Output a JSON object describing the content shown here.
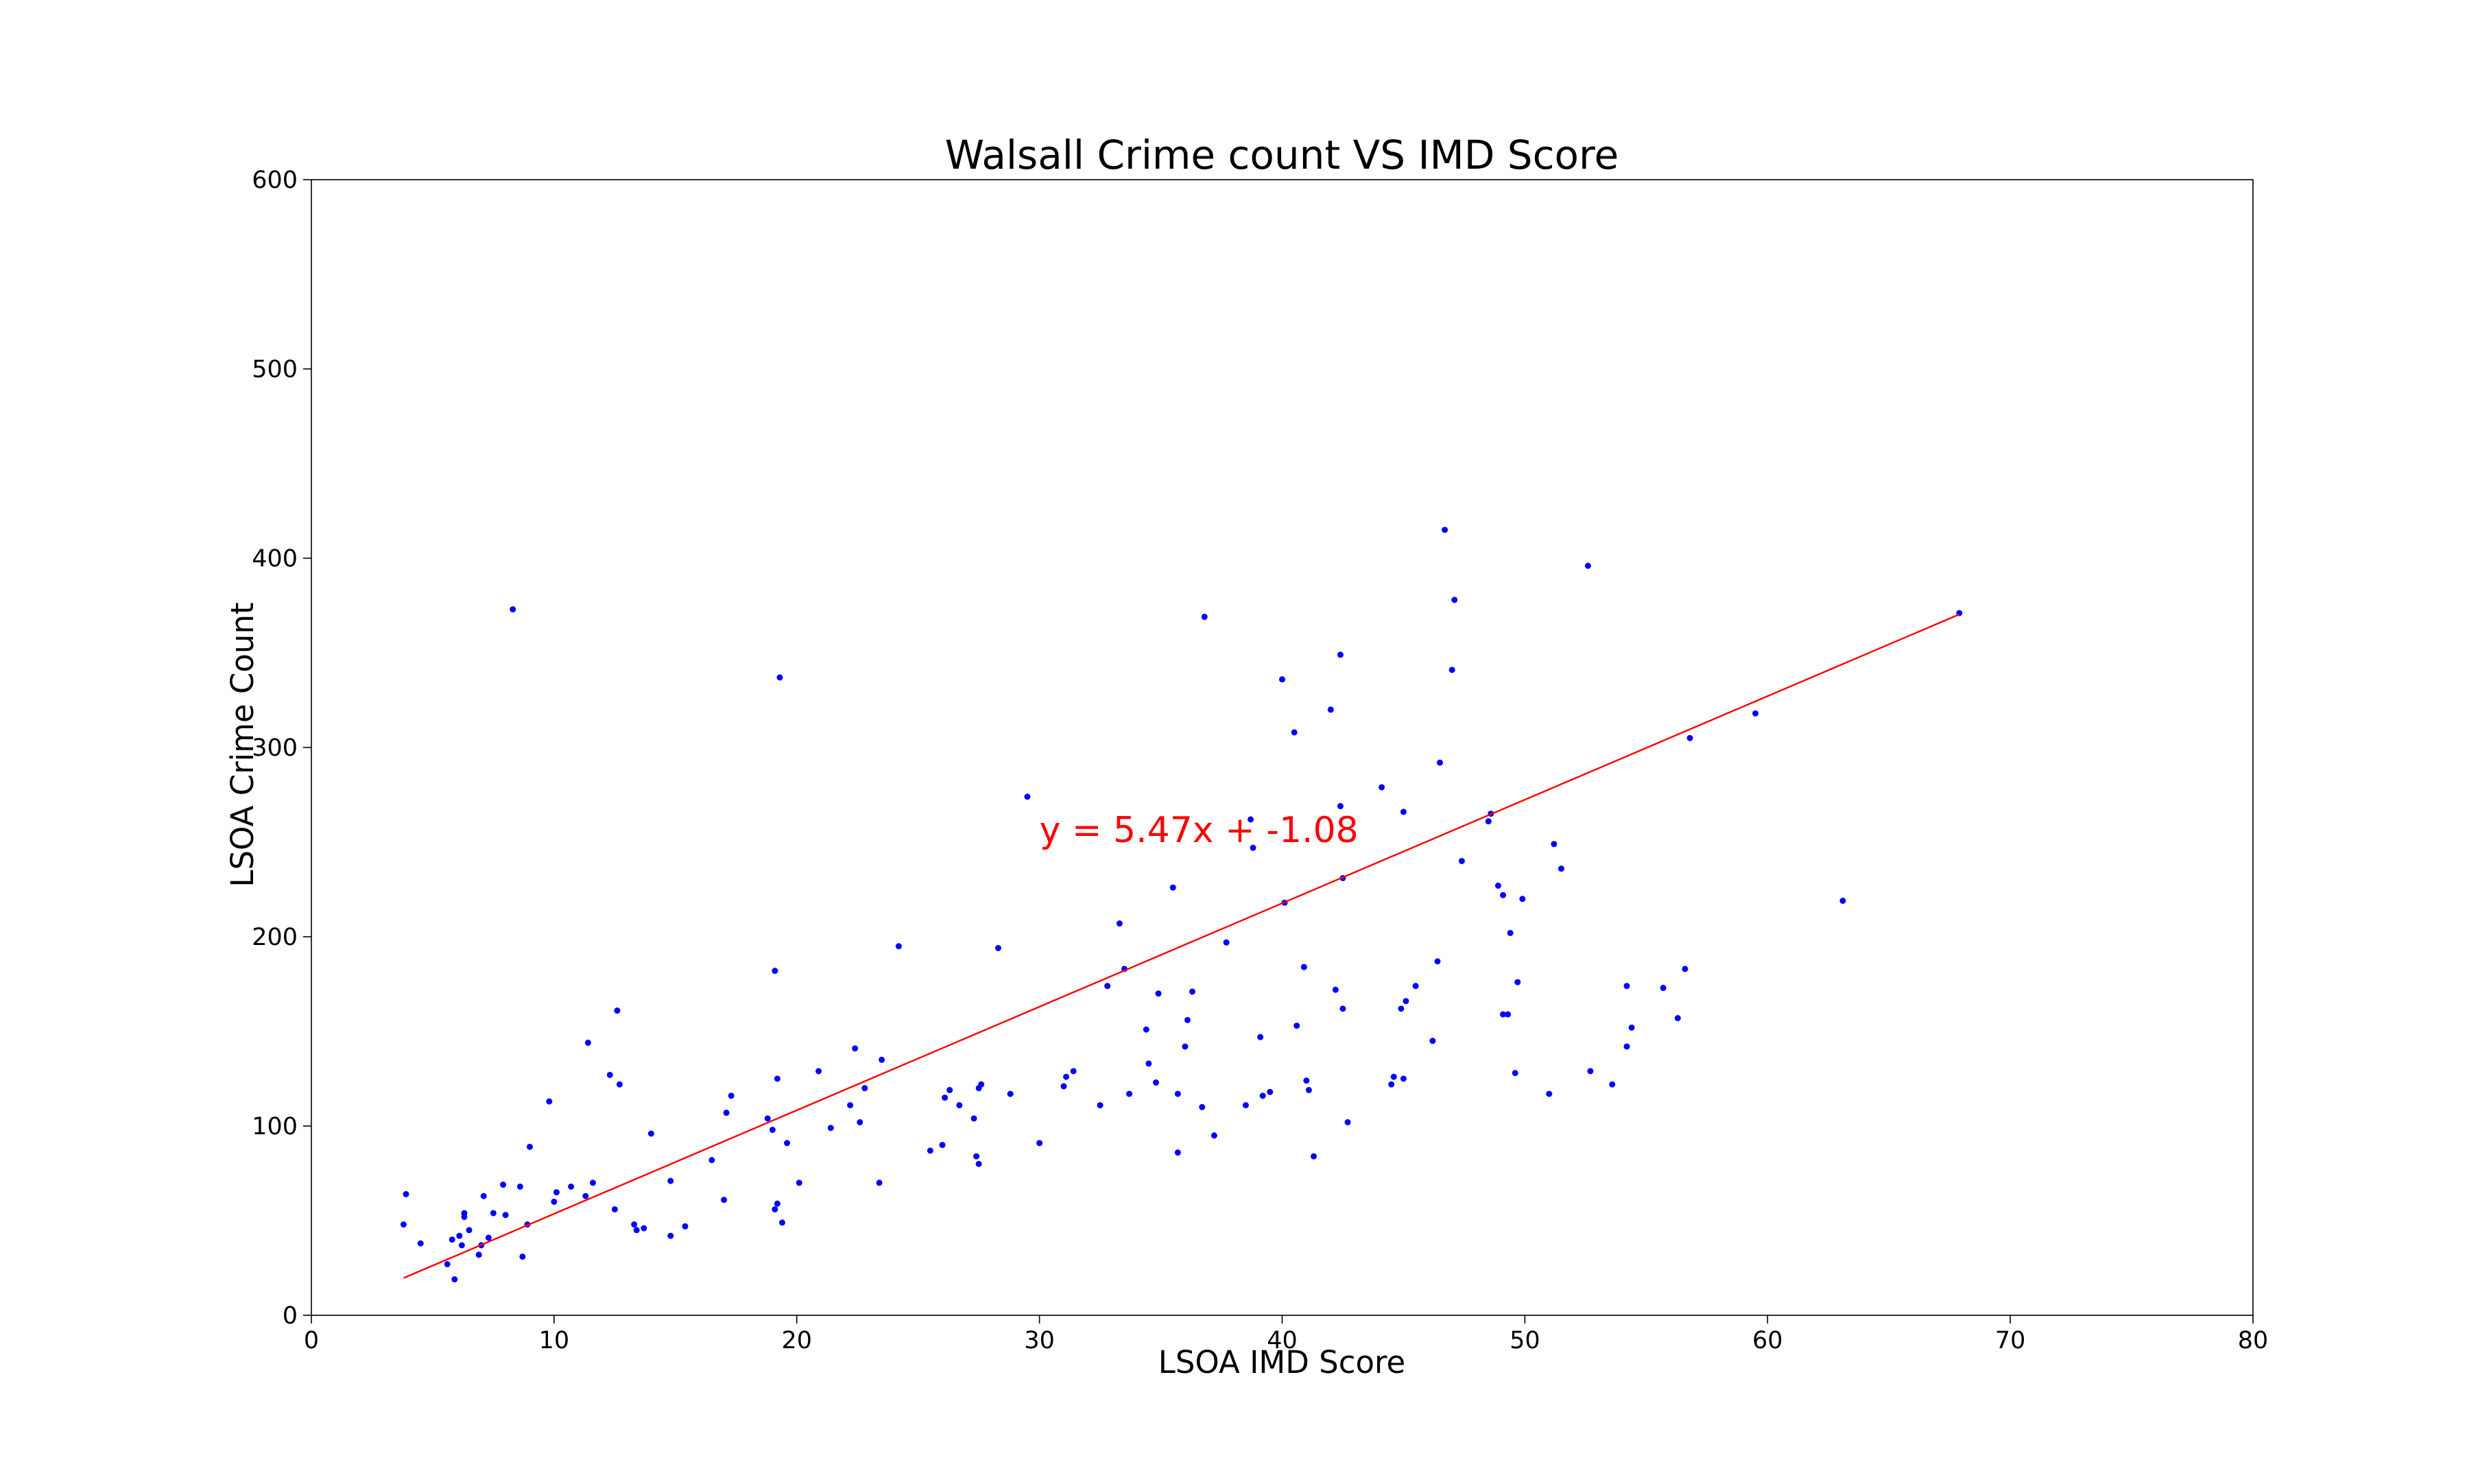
{
  "chart_data": {
    "type": "scatter",
    "title": "Walsall Crime count VS IMD Score",
    "xlabel": "LSOA IMD Score",
    "ylabel": "LSOA Crime Count",
    "xlim": [
      0,
      80
    ],
    "ylim": [
      0,
      600
    ],
    "xticks": [
      "0",
      "10",
      "20",
      "30",
      "40",
      "50",
      "60",
      "70",
      "80"
    ],
    "yticks": [
      "0",
      "100",
      "200",
      "300",
      "400",
      "500",
      "600"
    ],
    "grid": false,
    "point_color": "#0000ff",
    "line_color": "#ff0000",
    "annotation": {
      "text": "y = 5.47x + -1.08",
      "x": 30,
      "y": 250
    },
    "trendline": {
      "slope": 5.47,
      "intercept": -1.08,
      "x_start": 3.8,
      "x_end": 67.9
    },
    "series": [
      {
        "points": [
          [
            3.8,
            48
          ],
          [
            3.9,
            64
          ],
          [
            4.5,
            38
          ],
          [
            5.6,
            27
          ],
          [
            5.8,
            40
          ],
          [
            5.9,
            19
          ],
          [
            6.1,
            42
          ],
          [
            6.2,
            37
          ],
          [
            6.3,
            52
          ],
          [
            6.3,
            54
          ],
          [
            6.5,
            45
          ],
          [
            6.9,
            32
          ],
          [
            7.0,
            37
          ],
          [
            7.1,
            63
          ],
          [
            7.3,
            41
          ],
          [
            7.5,
            54
          ],
          [
            7.9,
            69
          ],
          [
            8.0,
            53
          ],
          [
            8.3,
            373
          ],
          [
            8.6,
            68
          ],
          [
            8.7,
            31
          ],
          [
            8.9,
            48
          ],
          [
            9.0,
            89
          ],
          [
            9.8,
            113
          ],
          [
            10.0,
            60
          ],
          [
            10.1,
            65
          ],
          [
            10.7,
            68
          ],
          [
            11.3,
            63
          ],
          [
            11.4,
            144
          ],
          [
            11.6,
            70
          ],
          [
            12.3,
            127
          ],
          [
            12.5,
            56
          ],
          [
            12.6,
            161
          ],
          [
            12.7,
            122
          ],
          [
            13.3,
            48
          ],
          [
            13.4,
            45
          ],
          [
            13.7,
            46
          ],
          [
            14.0,
            96
          ],
          [
            14.8,
            71
          ],
          [
            14.8,
            42
          ],
          [
            15.4,
            47
          ],
          [
            16.5,
            82
          ],
          [
            17.0,
            61
          ],
          [
            17.1,
            107
          ],
          [
            17.3,
            116
          ],
          [
            18.8,
            104
          ],
          [
            19.0,
            98
          ],
          [
            19.1,
            56
          ],
          [
            19.1,
            182
          ],
          [
            19.2,
            125
          ],
          [
            19.2,
            59
          ],
          [
            19.3,
            337
          ],
          [
            19.4,
            49
          ],
          [
            19.6,
            91
          ],
          [
            20.1,
            70
          ],
          [
            20.9,
            129
          ],
          [
            21.4,
            99
          ],
          [
            22.2,
            111
          ],
          [
            22.4,
            141
          ],
          [
            22.6,
            102
          ],
          [
            22.8,
            120
          ],
          [
            23.4,
            70
          ],
          [
            23.5,
            135
          ],
          [
            24.2,
            195
          ],
          [
            25.5,
            87
          ],
          [
            26.0,
            90
          ],
          [
            26.1,
            115
          ],
          [
            26.3,
            119
          ],
          [
            26.7,
            111
          ],
          [
            27.3,
            104
          ],
          [
            27.4,
            84
          ],
          [
            27.5,
            80
          ],
          [
            27.5,
            120
          ],
          [
            27.6,
            122
          ],
          [
            28.3,
            194
          ],
          [
            28.8,
            117
          ],
          [
            29.5,
            274
          ],
          [
            30.0,
            91
          ],
          [
            31.0,
            121
          ],
          [
            31.1,
            126
          ],
          [
            31.4,
            129
          ],
          [
            32.5,
            111
          ],
          [
            32.8,
            174
          ],
          [
            33.3,
            207
          ],
          [
            33.5,
            183
          ],
          [
            33.7,
            117
          ],
          [
            34.4,
            151
          ],
          [
            34.5,
            133
          ],
          [
            34.8,
            123
          ],
          [
            34.9,
            170
          ],
          [
            35.5,
            226
          ],
          [
            35.7,
            117
          ],
          [
            35.7,
            86
          ],
          [
            36.0,
            142
          ],
          [
            36.1,
            156
          ],
          [
            36.3,
            171
          ],
          [
            36.7,
            110
          ],
          [
            36.8,
            369
          ],
          [
            37.2,
            95
          ],
          [
            37.7,
            197
          ],
          [
            38.5,
            111
          ],
          [
            38.7,
            262
          ],
          [
            38.8,
            247
          ],
          [
            39.1,
            147
          ],
          [
            39.2,
            116
          ],
          [
            39.5,
            118
          ],
          [
            40.0,
            336
          ],
          [
            40.1,
            218
          ],
          [
            40.5,
            308
          ],
          [
            40.6,
            153
          ],
          [
            40.9,
            184
          ],
          [
            41.0,
            124
          ],
          [
            41.1,
            119
          ],
          [
            41.3,
            84
          ],
          [
            42.0,
            320
          ],
          [
            42.2,
            172
          ],
          [
            42.4,
            349
          ],
          [
            42.4,
            269
          ],
          [
            42.5,
            162
          ],
          [
            42.5,
            231
          ],
          [
            42.7,
            102
          ],
          [
            44.1,
            279
          ],
          [
            44.5,
            122
          ],
          [
            44.6,
            126
          ],
          [
            44.9,
            162
          ],
          [
            45.0,
            266
          ],
          [
            45.0,
            125
          ],
          [
            45.1,
            166
          ],
          [
            45.5,
            174
          ],
          [
            46.2,
            145
          ],
          [
            46.4,
            187
          ],
          [
            46.5,
            292
          ],
          [
            46.7,
            415
          ],
          [
            47.0,
            341
          ],
          [
            47.1,
            378
          ],
          [
            47.4,
            240
          ],
          [
            48.5,
            261
          ],
          [
            48.6,
            265
          ],
          [
            48.9,
            227
          ],
          [
            49.1,
            222
          ],
          [
            49.1,
            159
          ],
          [
            49.3,
            159
          ],
          [
            49.4,
            202
          ],
          [
            49.6,
            128
          ],
          [
            49.7,
            176
          ],
          [
            49.9,
            220
          ],
          [
            51.0,
            117
          ],
          [
            51.2,
            249
          ],
          [
            51.5,
            236
          ],
          [
            52.6,
            396
          ],
          [
            52.7,
            129
          ],
          [
            53.6,
            122
          ],
          [
            54.2,
            142
          ],
          [
            54.2,
            174
          ],
          [
            54.4,
            152
          ],
          [
            55.7,
            173
          ],
          [
            56.3,
            157
          ],
          [
            56.6,
            183
          ],
          [
            56.8,
            305
          ],
          [
            59.5,
            318
          ],
          [
            63.1,
            219
          ],
          [
            67.9,
            371
          ]
        ]
      }
    ]
  }
}
